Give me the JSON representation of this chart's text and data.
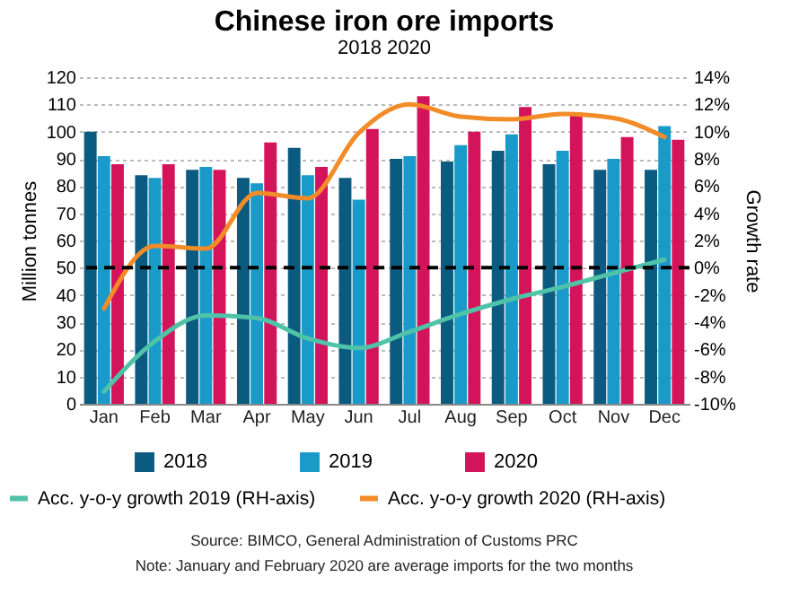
{
  "chart_data": {
    "type": "bar",
    "title": "Chinese iron ore imports",
    "subtitle": "2018 2020",
    "ylabel": "Million tonnes",
    "y2label": "Growth rate",
    "categories": [
      "Jan",
      "Feb",
      "Mar",
      "Apr",
      "May",
      "Jun",
      "Jul",
      "Aug",
      "Sep",
      "Oct",
      "Nov",
      "Dec"
    ],
    "series": [
      {
        "name": "2018",
        "color": "#0b5a80",
        "values": [
          100,
          84,
          86,
          83,
          94,
          83,
          90,
          89,
          93,
          88,
          86,
          86
        ]
      },
      {
        "name": "2019",
        "color": "#1a9ac9",
        "values": [
          91,
          83,
          87,
          81,
          84,
          75,
          91,
          95,
          99,
          93,
          90,
          102
        ]
      },
      {
        "name": "2020",
        "color": "#d4145a",
        "values": [
          88,
          88,
          86,
          96,
          87,
          101,
          113,
          100,
          109,
          107,
          98,
          97
        ]
      },
      {
        "name": "Acc. y-o-y growth 2019 (RH-axis)",
        "type": "line",
        "axis": "y2",
        "color": "#4fc3a8",
        "values": [
          -9.1,
          -5.4,
          -3.5,
          -3.7,
          -5.2,
          -5.9,
          -4.7,
          -3.4,
          -2.3,
          -1.4,
          -0.4,
          0.6
        ]
      },
      {
        "name": "Acc. y-o-y growth 2020 (RH-axis)",
        "type": "line",
        "axis": "y2",
        "color": "#f28c28",
        "values": [
          -3,
          1.6,
          1.4,
          5.5,
          5.1,
          9.9,
          12,
          11.1,
          10.9,
          11.3,
          11,
          9.6
        ]
      }
    ],
    "ylim": [
      0,
      120
    ],
    "yticks": [
      0,
      10,
      20,
      30,
      40,
      50,
      60,
      70,
      80,
      90,
      100,
      110,
      120
    ],
    "y2lim": [
      -10,
      14
    ],
    "y2ticks": [
      {
        "value": 14,
        "label": "14%"
      },
      {
        "value": 12,
        "label": "12%"
      },
      {
        "value": 10,
        "label": "10%"
      },
      {
        "value": 8,
        "label": "8%"
      },
      {
        "value": 6,
        "label": "6%"
      },
      {
        "value": 4,
        "label": "4%"
      },
      {
        "value": 2,
        "label": "2%"
      },
      {
        "value": 0,
        "label": "0%"
      },
      {
        "value": -2,
        "label": "-2%"
      },
      {
        "value": -4,
        "label": "-4%"
      },
      {
        "value": -6,
        "label": "-6%"
      },
      {
        "value": -8,
        "label": "-8%"
      },
      {
        "value": -10,
        "label": "-10%"
      }
    ],
    "ref_lines": [
      {
        "axis": "y",
        "value": 50,
        "color": "#000000",
        "line_style": "dashed"
      }
    ],
    "grid": "y",
    "legend": "bottom",
    "annotations": [
      "Source: BIMCO, General Administration of Customs PRC",
      "Note: January and February 2020 are average imports for the two months"
    ]
  }
}
